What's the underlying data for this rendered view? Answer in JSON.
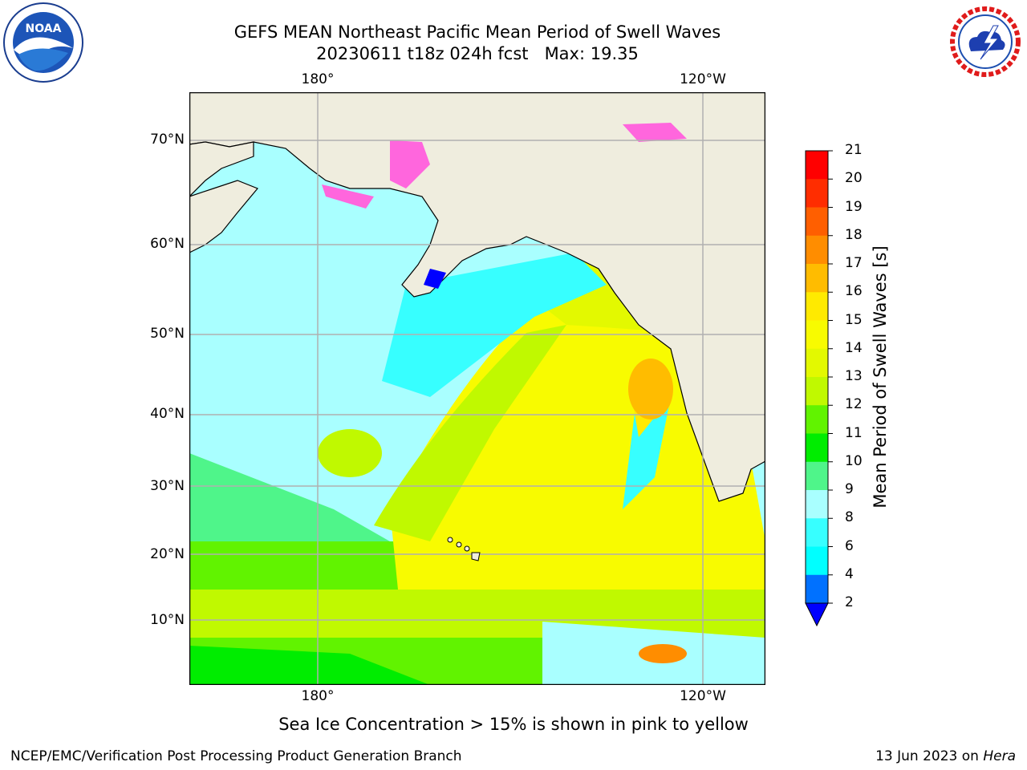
{
  "title": {
    "line1": "GEFS MEAN Northeast Pacific Mean Period of Swell Waves",
    "line2": "20230611 t18z 024h fcst",
    "max_label": "Max: 19.35"
  },
  "logos": {
    "left": {
      "icon": "noaa-logo",
      "text": "NOAA"
    },
    "right": {
      "icon": "nws-logo",
      "text": "NATIONAL WEATHER SERVICE"
    }
  },
  "map": {
    "region": "Northeast Pacific",
    "lon_labels": [
      "180°",
      "120°W"
    ],
    "lat_labels": [
      "70°N",
      "60°N",
      "50°N",
      "40°N",
      "30°N",
      "20°N",
      "10°N"
    ],
    "colors": {
      "land": "#efedde",
      "grid": "#b0b0b0",
      "coast": "#000000",
      "ice": "#ff66dd"
    }
  },
  "colorbar": {
    "title": "Mean Period of Swell Waves [s]",
    "ticks": [
      "2",
      "4",
      "6",
      "8",
      "9",
      "10",
      "11",
      "12",
      "13",
      "14",
      "15",
      "16",
      "17",
      "18",
      "19",
      "20",
      "21"
    ],
    "colors": [
      "#0071ff",
      "#00ffff",
      "#37ffff",
      "#a9ffff",
      "#4ff58a",
      "#00ed00",
      "#61f300",
      "#c0f900",
      "#e3f900",
      "#f8fb00",
      "#ffea00",
      "#ffbc00",
      "#ff8d00",
      "#ff5f00",
      "#ff2d00",
      "#ff0000"
    ],
    "extend_color": "#0000ff"
  },
  "footnote": "Sea Ice Concentration > 15% is shown in pink to yellow",
  "credits": {
    "left": "NCEP/EMC/Verification Post Processing Product Generation Branch",
    "right_prefix": "13 Jun 2023 on",
    "right_host": "Hera"
  }
}
